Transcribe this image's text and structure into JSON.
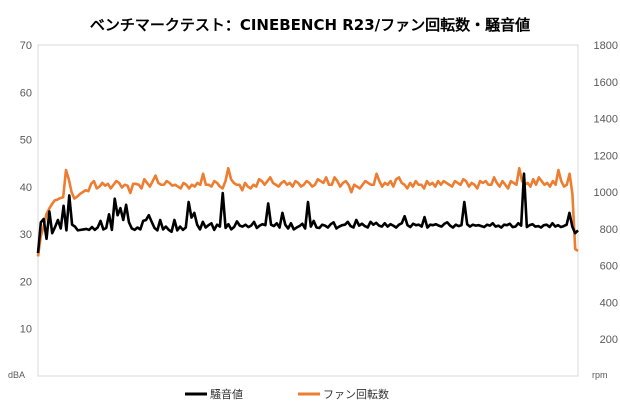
{
  "chart_data": {
    "type": "line",
    "title": "ベンチマークテスト：CINEBENCH R23/ファン回転数・騒音値",
    "ylabel_left_unit": "dBA",
    "ylabel_right_unit": "rpm",
    "ylim_left": [
      0,
      70
    ],
    "ylim_right": [
      0,
      1800
    ],
    "yticks_left": [
      "10",
      "20",
      "30",
      "40",
      "50",
      "60",
      "70"
    ],
    "yticks_right": [
      "200",
      "400",
      "600",
      "800",
      "1000",
      "1200",
      "1400",
      "1600",
      "1800"
    ],
    "grid": false,
    "legend_position": "bottom",
    "series": [
      {
        "name": "騒音値",
        "axis": "left",
        "color": "#000000",
        "values": [
          26.0,
          32.5,
          33.2,
          29.0,
          34.8,
          30.2,
          31.5,
          33.0,
          31.2,
          36.0,
          30.8,
          38.2,
          32.0,
          31.6,
          30.8,
          30.9,
          31.0,
          31.1,
          30.9,
          31.5,
          30.9,
          31.4,
          32.8,
          31.0,
          31.3,
          34.2,
          30.9,
          37.5,
          34.0,
          35.5,
          33.0,
          36.2,
          32.5,
          31.2,
          30.9,
          31.4,
          31.0,
          32.8,
          33.0,
          34.0,
          32.6,
          31.3,
          30.8,
          33.0,
          31.0,
          31.6,
          30.9,
          30.5,
          33.0,
          30.8,
          31.6,
          30.9,
          31.4,
          36.8,
          33.5,
          34.5,
          32.0,
          31.0,
          32.6,
          31.4,
          31.9,
          32.3,
          30.9,
          32.0,
          31.6,
          38.7,
          31.3,
          32.1,
          31.0,
          31.5,
          32.7,
          31.8,
          31.6,
          32.0,
          31.5,
          31.8,
          32.6,
          31.3,
          31.8,
          32.1,
          31.9,
          36.5,
          32.0,
          31.7,
          32.3,
          31.4,
          34.5,
          32.0,
          31.2,
          32.3,
          31.0,
          31.4,
          31.7,
          32.2,
          31.2,
          36.8,
          31.6,
          32.8,
          31.4,
          31.3,
          32.0,
          31.8,
          31.4,
          32.1,
          32.5,
          31.2,
          31.6,
          31.9,
          32.0,
          32.6,
          31.7,
          31.4,
          33.0,
          31.8,
          32.2,
          31.7,
          31.4,
          32.6,
          32.0,
          32.4,
          31.8,
          31.6,
          32.3,
          31.6,
          32.1,
          31.8,
          31.4,
          32.0,
          32.3,
          33.8,
          31.9,
          31.5,
          32.2,
          31.9,
          32.0,
          31.6,
          33.6,
          31.4,
          32.0,
          31.9,
          32.1,
          31.8,
          31.6,
          32.2,
          32.5,
          31.8,
          31.4,
          32.0,
          31.7,
          31.9,
          36.8,
          32.1,
          31.6,
          32.0,
          31.8,
          31.9,
          31.7,
          31.5,
          32.0,
          31.8,
          32.3,
          31.6,
          31.8,
          31.4,
          32.0,
          31.9,
          32.2,
          31.5,
          31.6,
          32.3,
          31.8,
          42.8,
          31.5,
          31.9,
          32.1,
          31.6,
          31.7,
          31.4,
          31.9,
          32.0,
          31.5,
          32.3,
          31.6,
          31.9,
          31.5,
          31.7,
          32.0,
          34.5,
          31.6,
          30.2,
          30.8
        ]
      },
      {
        "name": "ファン回転数",
        "axis": "right",
        "color": "#ed7d31",
        "values": [
          650,
          760,
          810,
          880,
          910,
          935,
          955,
          960,
          968,
          972,
          1120,
          1070,
          1000,
          965,
          975,
          990,
          1000,
          1010,
          1005,
          1045,
          1060,
          1020,
          1030,
          1050,
          1035,
          1045,
          1020,
          1040,
          1060,
          1050,
          1025,
          1040,
          1035,
          995,
          1045,
          1045,
          1040,
          1020,
          1070,
          1050,
          1030,
          1060,
          1090,
          1050,
          1040,
          1040,
          1060,
          1050,
          1035,
          1040,
          1030,
          1020,
          1050,
          1040,
          1020,
          1040,
          1030,
          1050,
          1040,
          1100,
          1040,
          1040,
          1030,
          1060,
          1050,
          1030,
          1020,
          1060,
          1130,
          1070,
          1050,
          1040,
          1040,
          1010,
          1050,
          1030,
          1020,
          1040,
          1030,
          1070,
          1060,
          1040,
          1060,
          1080,
          1050,
          1040,
          1030,
          1050,
          1060,
          1040,
          1050,
          1030,
          1060,
          1050,
          1030,
          1040,
          1060,
          1050,
          1030,
          1040,
          1070,
          1060,
          1050,
          1080,
          1040,
          1040,
          1080,
          1060,
          1030,
          1050,
          1060,
          1040,
          1000,
          1040,
          1030,
          1020,
          1040,
          1060,
          1050,
          1040,
          1040,
          1100,
          1060,
          1030,
          1050,
          1040,
          1060,
          1030,
          1070,
          1080,
          1050,
          1040,
          1020,
          1050,
          1030,
          1060,
          1040,
          1040,
          1020,
          1060,
          1040,
          1050,
          1030,
          1060,
          1040,
          1060,
          1050,
          1040,
          1030,
          1060,
          1050,
          1040,
          1070,
          1060,
          1030,
          1050,
          1040,
          1020,
          1060,
          1050,
          1060,
          1040,
          1040,
          1080,
          1050,
          1030,
          1060,
          1040,
          1020,
          1060,
          1050,
          1040,
          1130,
          1060,
          1040,
          1050,
          1030,
          1070,
          1040,
          1080,
          1060,
          1040,
          1050,
          1030,
          1060,
          1040,
          1120,
          1060,
          1030,
          1040,
          1100,
          990,
          690,
          680
        ]
      }
    ]
  }
}
